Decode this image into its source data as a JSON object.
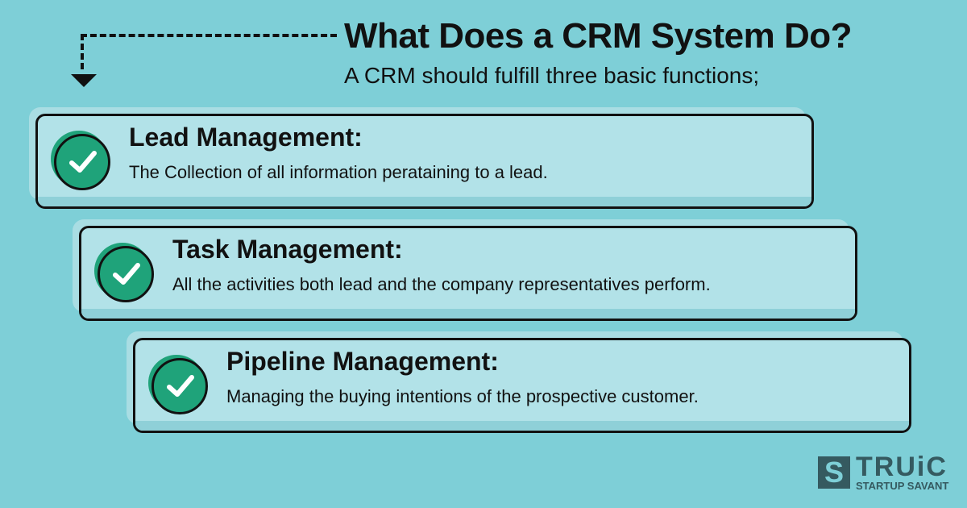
{
  "header": {
    "title": "What Does a CRM System Do?",
    "subtitle": "A CRM should fulfill three basic functions;"
  },
  "functions": [
    {
      "title": "Lead Management:",
      "description": "The Collection of all information perataining to a lead."
    },
    {
      "title": "Task Management:",
      "description": "All the activities both lead and the company representatives perform."
    },
    {
      "title": "Pipeline Management:",
      "description": "Managing the buying intentions of the prospective customer."
    }
  ],
  "logo": {
    "mark": "S",
    "name": "TRUiC",
    "tagline": "STARTUP SAVANT"
  },
  "colors": {
    "background": "#7ecfd7",
    "card": "#b2e2e8",
    "check": "#1fa37a",
    "logo": "#355a60"
  }
}
